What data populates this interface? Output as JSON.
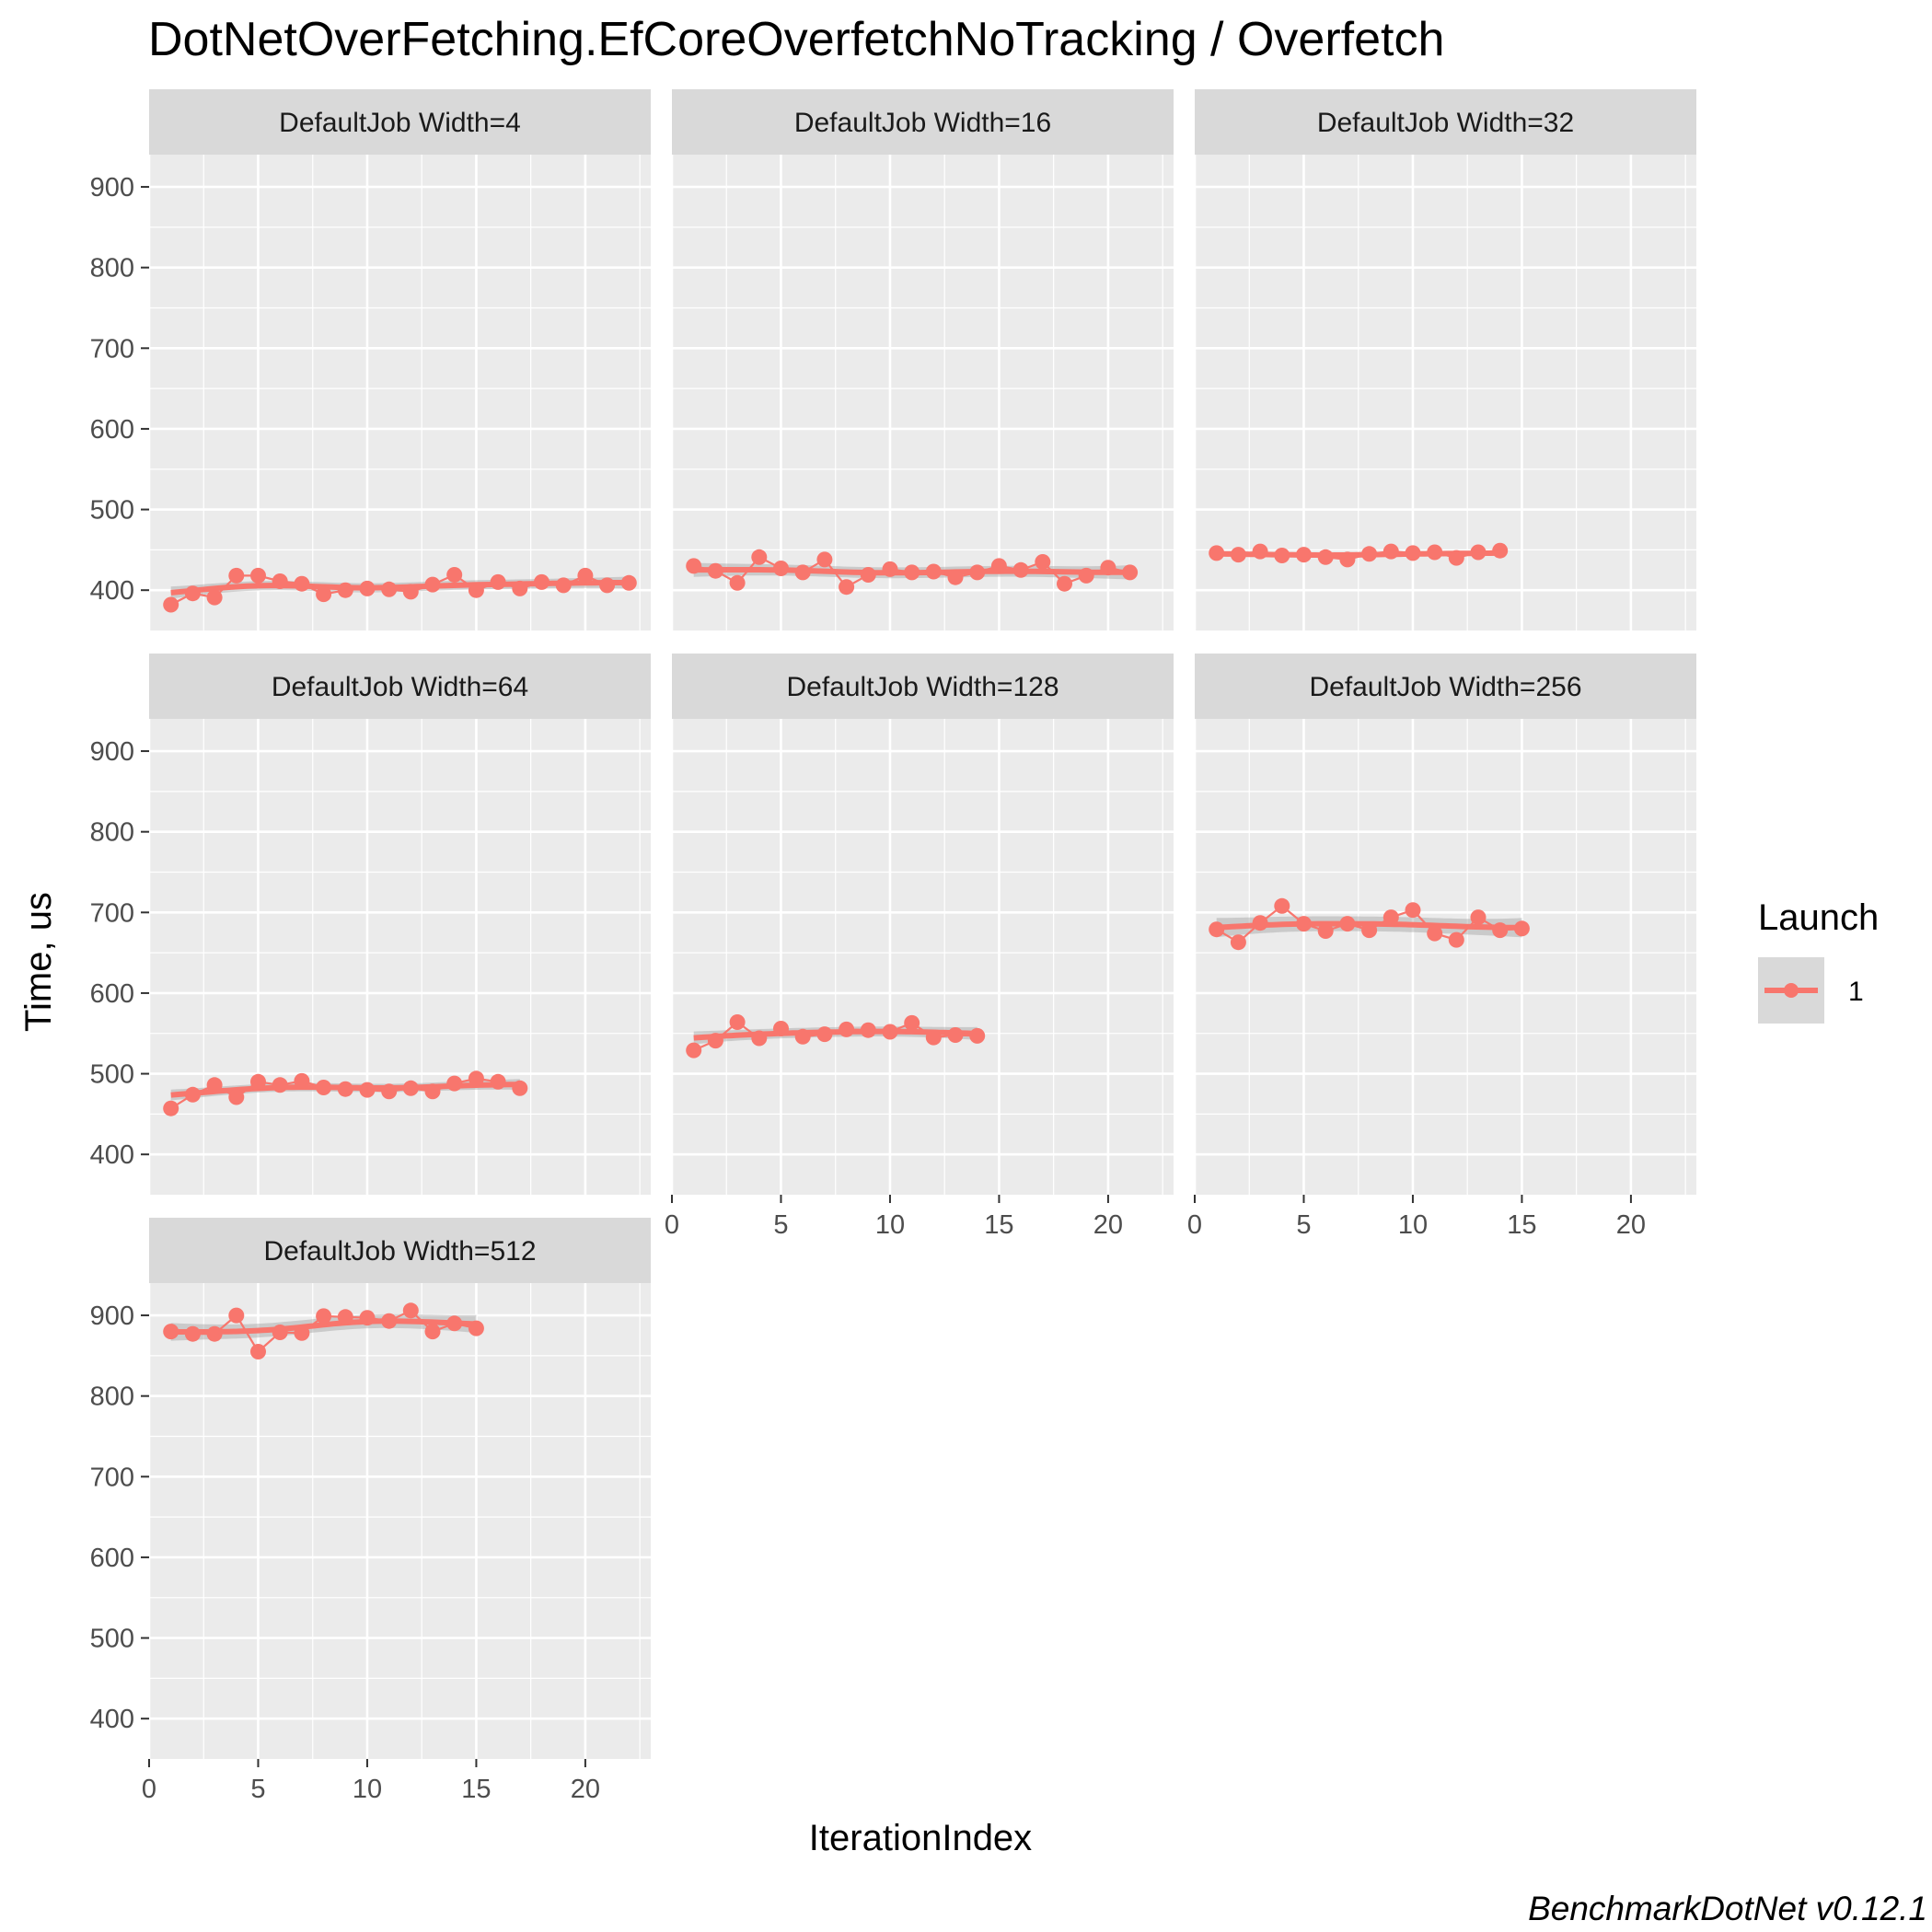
{
  "chart_data": {
    "type": "line",
    "title": "DotNetOverFetching.EfCoreOverfetchNoTracking / Overfetch",
    "xlabel": "IterationIndex",
    "ylabel": "Time, us",
    "caption": "BenchmarkDotNet v0.12.1",
    "xlim": [
      0,
      23
    ],
    "ylim": [
      350,
      940
    ],
    "x_ticks": [
      0,
      5,
      10,
      15,
      20
    ],
    "y_ticks": [
      400,
      500,
      600,
      700,
      800,
      900
    ],
    "grid": true,
    "smoother": "loess with confidence band",
    "legend": {
      "title": "Launch",
      "position": "right",
      "entries": [
        {
          "label": "1",
          "color": "#F8766D"
        }
      ]
    },
    "colors": {
      "series": "#F8766D",
      "panel_bg": "#EBEBEB",
      "strip_bg": "#D9D9D9",
      "band": "#999999"
    },
    "panels": [
      {
        "label": "DefaultJob Width=4",
        "x": [
          1,
          2,
          3,
          4,
          5,
          6,
          7,
          8,
          9,
          10,
          11,
          12,
          13,
          14,
          15,
          16,
          17,
          18,
          19,
          20,
          21,
          22
        ],
        "y": [
          382,
          396,
          391,
          418,
          418,
          411,
          408,
          395,
          400,
          402,
          401,
          398,
          407,
          419,
          400,
          410,
          402,
          410,
          406,
          418,
          406,
          409
        ]
      },
      {
        "label": "DefaultJob Width=16",
        "x": [
          1,
          2,
          3,
          4,
          5,
          6,
          7,
          8,
          9,
          10,
          11,
          12,
          13,
          14,
          15,
          16,
          17,
          18,
          19,
          20,
          21
        ],
        "y": [
          430,
          424,
          409,
          441,
          427,
          422,
          438,
          404,
          419,
          426,
          422,
          423,
          416,
          422,
          430,
          425,
          435,
          408,
          418,
          428,
          422
        ]
      },
      {
        "label": "DefaultJob Width=32",
        "x": [
          1,
          2,
          3,
          4,
          5,
          6,
          7,
          8,
          9,
          10,
          11,
          12,
          13,
          14
        ],
        "y": [
          446,
          444,
          448,
          443,
          444,
          441,
          438,
          445,
          448,
          446,
          447,
          440,
          447,
          449
        ]
      },
      {
        "label": "DefaultJob Width=64",
        "x": [
          1,
          2,
          3,
          4,
          5,
          6,
          7,
          8,
          9,
          10,
          11,
          12,
          13,
          14,
          15,
          16,
          17
        ],
        "y": [
          457,
          474,
          486,
          471,
          490,
          486,
          491,
          483,
          481,
          480,
          478,
          482,
          478,
          488,
          494,
          490,
          482
        ]
      },
      {
        "label": "DefaultJob Width=128",
        "x": [
          1,
          2,
          3,
          4,
          5,
          6,
          7,
          8,
          9,
          10,
          11,
          12,
          13,
          14
        ],
        "y": [
          529,
          541,
          564,
          544,
          556,
          546,
          549,
          555,
          554,
          552,
          563,
          545,
          548,
          547
        ]
      },
      {
        "label": "DefaultJob Width=256",
        "x": [
          1,
          2,
          3,
          4,
          5,
          6,
          7,
          8,
          9,
          10,
          11,
          12,
          13,
          14,
          15
        ],
        "y": [
          679,
          663,
          687,
          708,
          686,
          677,
          686,
          678,
          694,
          703,
          674,
          666,
          694,
          678,
          680
        ]
      },
      {
        "label": "DefaultJob Width=512",
        "x": [
          1,
          2,
          3,
          4,
          5,
          6,
          7,
          8,
          9,
          10,
          11,
          12,
          13,
          14,
          15
        ],
        "y": [
          880,
          877,
          877,
          900,
          855,
          879,
          878,
          899,
          898,
          897,
          893,
          906,
          880,
          890,
          884
        ]
      }
    ]
  }
}
